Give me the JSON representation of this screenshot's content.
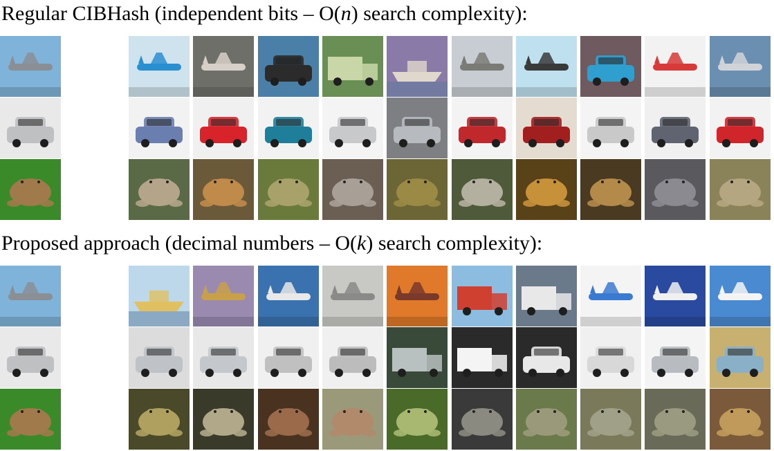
{
  "sections": [
    {
      "title_prefix": "Regular CIBHash (independent bits – O(",
      "title_var": "n",
      "title_suffix": ") search complexity):",
      "rows": [
        {
          "query": {
            "label": "airplane",
            "bg": "#7fb3d9",
            "fg": "#8a8f95"
          },
          "results": [
            {
              "label": "airplane",
              "bg": "#cfe3ee",
              "fg": "#2a8fd0"
            },
            {
              "label": "airplane",
              "bg": "#6f6f6a",
              "fg": "#d7d0c8"
            },
            {
              "label": "car",
              "bg": "#4a7fa7",
              "fg": "#2b2b2b"
            },
            {
              "label": "truck",
              "bg": "#6a8f55",
              "fg": "#c9d7a8"
            },
            {
              "label": "ship",
              "bg": "#8a7aa8",
              "fg": "#e0d8cc"
            },
            {
              "label": "airplane",
              "bg": "#c7cdd3",
              "fg": "#7b7b75"
            },
            {
              "label": "airplane",
              "bg": "#bfe0ef",
              "fg": "#3a3a3a"
            },
            {
              "label": "car",
              "bg": "#6f5a60",
              "fg": "#2f9fd0"
            },
            {
              "label": "airplane",
              "bg": "#f2f2f2",
              "fg": "#d83a3a"
            },
            {
              "label": "airplane",
              "bg": "#6a8fb0",
              "fg": "#d0d4d8"
            }
          ]
        },
        {
          "query": {
            "label": "car",
            "bg": "#e9e9e9",
            "fg": "#bfc0c2"
          },
          "results": [
            {
              "label": "car",
              "bg": "#f2f2f2",
              "fg": "#6a7fb0"
            },
            {
              "label": "car",
              "bg": "#f0f0f0",
              "fg": "#d8232a"
            },
            {
              "label": "car",
              "bg": "#f2f2f2",
              "fg": "#1f7f9a"
            },
            {
              "label": "car",
              "bg": "#f4f4f4",
              "fg": "#c8c9cb"
            },
            {
              "label": "car",
              "bg": "#7d7f83",
              "fg": "#b7babe"
            },
            {
              "label": "car",
              "bg": "#f3f3f3",
              "fg": "#c0282c"
            },
            {
              "label": "car",
              "bg": "#e4dcd0",
              "fg": "#a11f1f"
            },
            {
              "label": "car",
              "bg": "#f4f4f4",
              "fg": "#c9c9c9"
            },
            {
              "label": "car",
              "bg": "#f0f0f0",
              "fg": "#5f6470"
            },
            {
              "label": "car",
              "bg": "#f2f2f2",
              "fg": "#d0262b"
            }
          ]
        },
        {
          "query": {
            "label": "frog",
            "bg": "#3b8a2a",
            "fg": "#a07a4a"
          },
          "results": [
            {
              "label": "frog",
              "bg": "#5b6a46",
              "fg": "#b4a58a"
            },
            {
              "label": "frog",
              "bg": "#6a5a3a",
              "fg": "#c08a4a"
            },
            {
              "label": "frog",
              "bg": "#6a7a3a",
              "fg": "#a8a26a"
            },
            {
              "label": "frog",
              "bg": "#6a5f52",
              "fg": "#a8a097"
            },
            {
              "label": "frog",
              "bg": "#6c6535",
              "fg": "#9a8a45"
            },
            {
              "label": "frog",
              "bg": "#4f5a3a",
              "fg": "#b4b0a0"
            },
            {
              "label": "frog",
              "bg": "#5a4218",
              "fg": "#c7913a"
            },
            {
              "label": "frog",
              "bg": "#4a3a22",
              "fg": "#b38a4a"
            },
            {
              "label": "frog",
              "bg": "#5a5a5e",
              "fg": "#8a8a90"
            },
            {
              "label": "frog",
              "bg": "#8a8258",
              "fg": "#b4a680"
            }
          ]
        }
      ]
    },
    {
      "title_prefix": "Proposed approach (decimal numbers – O(",
      "title_var": "k",
      "title_suffix": ") search complexity):",
      "rows": [
        {
          "query": {
            "label": "airplane",
            "bg": "#7fb3d9",
            "fg": "#8a8f95"
          },
          "results": [
            {
              "label": "ship",
              "bg": "#bcd8ea",
              "fg": "#e0c060"
            },
            {
              "label": "airplane",
              "bg": "#9a8ab0",
              "fg": "#c8a04a"
            },
            {
              "label": "airplane",
              "bg": "#3a72b0",
              "fg": "#e8e8e8"
            },
            {
              "label": "airplane",
              "bg": "#c8c8c4",
              "fg": "#8a8a88"
            },
            {
              "label": "airplane",
              "bg": "#e07a2a",
              "fg": "#7a3a2a"
            },
            {
              "label": "truck",
              "bg": "#8cbce0",
              "fg": "#d04030"
            },
            {
              "label": "truck",
              "bg": "#6a7a8a",
              "fg": "#e8e8e8"
            },
            {
              "label": "airplane",
              "bg": "#f4f4f4",
              "fg": "#3a7ad0"
            },
            {
              "label": "airplane",
              "bg": "#2a4aa0",
              "fg": "#f0f0f0"
            },
            {
              "label": "airplane",
              "bg": "#4a8ad0",
              "fg": "#f4f4f4"
            }
          ]
        },
        {
          "query": {
            "label": "car",
            "bg": "#e9e9e9",
            "fg": "#bfc0c2"
          },
          "results": [
            {
              "label": "car",
              "bg": "#dcdcdc",
              "fg": "#bfc3c8"
            },
            {
              "label": "car",
              "bg": "#e8e8e8",
              "fg": "#c4c8cc"
            },
            {
              "label": "car",
              "bg": "#f0f0f0",
              "fg": "#c0c0c0"
            },
            {
              "label": "car",
              "bg": "#f0f0f0",
              "fg": "#bcbcbc"
            },
            {
              "label": "truck",
              "bg": "#3a4a3a",
              "fg": "#b8c0c0"
            },
            {
              "label": "truck",
              "bg": "#2a2a2a",
              "fg": "#f4f4f4"
            },
            {
              "label": "car",
              "bg": "#2a2a2a",
              "fg": "#e8e8e8"
            },
            {
              "label": "car",
              "bg": "#f0f0f0",
              "fg": "#d8d8d8"
            },
            {
              "label": "car",
              "bg": "#f4f4f4",
              "fg": "#b8bcc0"
            },
            {
              "label": "car",
              "bg": "#c8b070",
              "fg": "#8ab0c8"
            }
          ]
        },
        {
          "query": {
            "label": "frog",
            "bg": "#3b8a2a",
            "fg": "#a07a4a"
          },
          "results": [
            {
              "label": "frog",
              "bg": "#4a4a2a",
              "fg": "#b0a060"
            },
            {
              "label": "frog",
              "bg": "#3a3a2a",
              "fg": "#b0a888"
            },
            {
              "label": "frog",
              "bg": "#4a3220",
              "fg": "#9a6a4a"
            },
            {
              "label": "frog",
              "bg": "#9a9a7a",
              "fg": "#b08a6a"
            },
            {
              "label": "frog",
              "bg": "#4a6a2a",
              "fg": "#a8b870"
            },
            {
              "label": "frog",
              "bg": "#3a3a3a",
              "fg": "#8a8a80"
            },
            {
              "label": "frog",
              "bg": "#6a7a4a",
              "fg": "#9a9a7a"
            },
            {
              "label": "frog",
              "bg": "#7a7a5a",
              "fg": "#a0a088"
            },
            {
              "label": "frog",
              "bg": "#6a6a58",
              "fg": "#9a9a80"
            },
            {
              "label": "frog",
              "bg": "#7a5a3a",
              "fg": "#c09a5a"
            }
          ]
        }
      ]
    }
  ]
}
